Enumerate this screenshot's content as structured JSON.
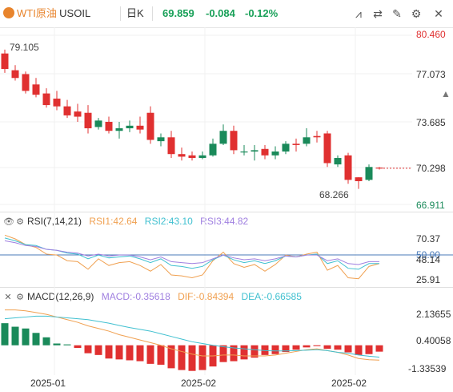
{
  "header": {
    "symbol": "WTI原油",
    "code": "USOIL",
    "period": "日K",
    "price": "69.859",
    "change": "-0.084",
    "change_pct": "-0.12%",
    "tools": [
      "indicator-icon",
      "draw-line-icon",
      "pen-icon",
      "settings-icon",
      "fullscreen-icon",
      "close-icon"
    ]
  },
  "main": {
    "y_labels": [
      "80.460",
      "77.073",
      "73.685",
      "70.298",
      "66.911"
    ],
    "high_marker": "79.105",
    "low_marker": "68.266"
  },
  "rsi": {
    "title": "RSI(7,14,21)",
    "rsi1": "RSI1:42.64",
    "rsi2": "RSI2:43.10",
    "rsi3": "RSI3:44.82",
    "y_labels": [
      "70.37",
      "50.00",
      "48.14",
      "25.91"
    ]
  },
  "macd": {
    "title": "MACD(12,26,9)",
    "macd": "MACD:-0.35618",
    "dif": "DIF:-0.84394",
    "dea": "DEA:-0.66585",
    "y_labels": [
      "2.13655",
      "0.40058",
      "-1.33539"
    ]
  },
  "x_labels": [
    "2025-01",
    "2025-02",
    "2025-02"
  ],
  "colors": {
    "up": "#e03030",
    "down": "#1a8a5a",
    "rsi1": "#f0a050",
    "rsi2": "#40c0d0",
    "rsi3": "#a080e0",
    "dif": "#f0a050",
    "dea": "#40c0d0",
    "accent": "#e8842c"
  },
  "chart_data": [
    {
      "type": "candlestick",
      "title": "",
      "ylim": [
        66.911,
        80.46
      ],
      "candles": [
        {
          "o": 78.8,
          "h": 79.1,
          "c": 77.6,
          "l": 77.3
        },
        {
          "o": 77.5,
          "h": 77.9,
          "c": 76.9,
          "l": 76.7
        },
        {
          "o": 77.2,
          "h": 77.4,
          "c": 75.9,
          "l": 75.7
        },
        {
          "o": 76.4,
          "h": 76.9,
          "c": 75.6,
          "l": 75.4
        },
        {
          "o": 75.7,
          "h": 76.1,
          "c": 74.8,
          "l": 74.6
        },
        {
          "o": 75.3,
          "h": 75.9,
          "c": 74.7,
          "l": 74.4
        },
        {
          "o": 74.7,
          "h": 75.2,
          "c": 74.0,
          "l": 73.8
        },
        {
          "o": 74.3,
          "h": 74.9,
          "c": 73.9,
          "l": 73.5
        },
        {
          "o": 74.2,
          "h": 74.8,
          "c": 73.0,
          "l": 72.6
        },
        {
          "o": 73.1,
          "h": 73.8,
          "c": 73.6,
          "l": 72.9
        },
        {
          "o": 73.5,
          "h": 73.9,
          "c": 72.8,
          "l": 72.6
        },
        {
          "o": 72.8,
          "h": 73.5,
          "c": 73.0,
          "l": 72.2
        },
        {
          "o": 73.0,
          "h": 73.6,
          "c": 73.2,
          "l": 72.7
        },
        {
          "o": 73.2,
          "h": 73.9,
          "c": 72.9,
          "l": 72.6
        },
        {
          "o": 74.2,
          "h": 74.7,
          "c": 72.1,
          "l": 71.8
        },
        {
          "o": 72.0,
          "h": 72.6,
          "c": 72.3,
          "l": 71.6
        },
        {
          "o": 72.3,
          "h": 72.8,
          "c": 71.0,
          "l": 70.7
        },
        {
          "o": 71.0,
          "h": 71.5,
          "c": 70.8,
          "l": 70.5
        },
        {
          "o": 70.9,
          "h": 71.2,
          "c": 70.7,
          "l": 70.5
        },
        {
          "o": 70.7,
          "h": 71.2,
          "c": 70.9,
          "l": 70.6
        },
        {
          "o": 70.9,
          "h": 72.2,
          "c": 71.8,
          "l": 70.8
        },
        {
          "o": 71.8,
          "h": 73.3,
          "c": 72.8,
          "l": 71.7
        },
        {
          "o": 72.8,
          "h": 73.2,
          "c": 71.3,
          "l": 71.0
        },
        {
          "o": 71.2,
          "h": 71.7,
          "c": 71.2,
          "l": 70.9
        },
        {
          "o": 71.2,
          "h": 71.7,
          "c": 71.3,
          "l": 70.5
        },
        {
          "o": 71.4,
          "h": 71.7,
          "c": 70.9,
          "l": 70.6
        },
        {
          "o": 70.9,
          "h": 71.6,
          "c": 71.2,
          "l": 70.6
        },
        {
          "o": 71.2,
          "h": 72.0,
          "c": 71.8,
          "l": 71.0
        },
        {
          "o": 71.8,
          "h": 72.2,
          "c": 71.7,
          "l": 71.2
        },
        {
          "o": 71.8,
          "h": 73.0,
          "c": 72.3,
          "l": 71.6
        },
        {
          "o": 72.4,
          "h": 72.8,
          "c": 72.3,
          "l": 71.9
        },
        {
          "o": 72.6,
          "h": 72.8,
          "c": 70.3,
          "l": 70.0
        },
        {
          "o": 70.2,
          "h": 70.9,
          "c": 70.7,
          "l": 70.0
        },
        {
          "o": 70.9,
          "h": 71.1,
          "c": 69.0,
          "l": 68.7
        },
        {
          "o": 69.2,
          "h": 69.2,
          "c": 68.9,
          "l": 68.3
        },
        {
          "o": 69.0,
          "h": 70.2,
          "c": 70.0,
          "l": 68.9
        },
        {
          "o": 69.95,
          "h": 70.0,
          "c": 69.9,
          "l": 69.8
        }
      ]
    },
    {
      "type": "line",
      "title": "RSI(7,14,21)",
      "ylim": [
        20,
        80
      ],
      "series": [
        {
          "name": "RSI1",
          "values": [
            73,
            69,
            63,
            60,
            53,
            52,
            46,
            45,
            37,
            48,
            41,
            44,
            45,
            41,
            35,
            42,
            31,
            30,
            28,
            31,
            46,
            55,
            43,
            39,
            42,
            35,
            42,
            52,
            50,
            53,
            55,
            36,
            41,
            28,
            27,
            40,
            43
          ]
        },
        {
          "name": "RSI2",
          "values": [
            70,
            67,
            63,
            62,
            58,
            57,
            54,
            53,
            48,
            52,
            49,
            50,
            51,
            48,
            44,
            48,
            41,
            40,
            38,
            40,
            47,
            52,
            47,
            44,
            46,
            43,
            46,
            51,
            50,
            52,
            53,
            43,
            46,
            38,
            37,
            43,
            43
          ]
        },
        {
          "name": "RSI3",
          "values": [
            67,
            65,
            62,
            61,
            58,
            57,
            55,
            54,
            51,
            53,
            51,
            52,
            52,
            50,
            47,
            50,
            45,
            44,
            43,
            44,
            48,
            52,
            49,
            47,
            48,
            46,
            48,
            51,
            50,
            52,
            52,
            46,
            48,
            43,
            42,
            45,
            45
          ]
        }
      ]
    },
    {
      "type": "bar",
      "title": "MACD(12,26,9)",
      "ylim": [
        -1.6,
        2.3
      ],
      "series": [
        {
          "name": "MACD",
          "values": [
            1.25,
            1.05,
            0.95,
            0.7,
            0.45,
            0.1,
            0.05,
            -0.15,
            -0.45,
            -0.55,
            -0.75,
            -0.8,
            -0.85,
            -0.9,
            -1.05,
            -1.1,
            -1.3,
            -1.4,
            -1.45,
            -1.4,
            -1.2,
            -0.95,
            -0.9,
            -0.8,
            -0.7,
            -0.55,
            -0.5,
            -0.38,
            -0.25,
            -0.12,
            -0.05,
            -0.2,
            -0.25,
            -0.4,
            -0.55,
            -0.5,
            -0.36
          ]
        },
        {
          "name": "DIF",
          "values": [
            2.0,
            2.0,
            1.95,
            1.85,
            1.75,
            1.6,
            1.45,
            1.3,
            1.1,
            0.95,
            0.8,
            0.6,
            0.45,
            0.3,
            0.15,
            0.0,
            -0.2,
            -0.35,
            -0.5,
            -0.6,
            -0.6,
            -0.55,
            -0.55,
            -0.6,
            -0.6,
            -0.6,
            -0.55,
            -0.45,
            -0.35,
            -0.25,
            -0.2,
            -0.3,
            -0.4,
            -0.55,
            -0.75,
            -0.82,
            -0.84
          ]
        },
        {
          "name": "DEA",
          "values": [
            1.5,
            1.55,
            1.6,
            1.65,
            1.65,
            1.6,
            1.55,
            1.5,
            1.45,
            1.35,
            1.25,
            1.12,
            1.0,
            0.9,
            0.8,
            0.65,
            0.5,
            0.35,
            0.2,
            0.1,
            0.0,
            -0.08,
            -0.15,
            -0.2,
            -0.25,
            -0.3,
            -0.32,
            -0.32,
            -0.3,
            -0.28,
            -0.25,
            -0.3,
            -0.4,
            -0.45,
            -0.55,
            -0.62,
            -0.67
          ]
        }
      ]
    }
  ]
}
